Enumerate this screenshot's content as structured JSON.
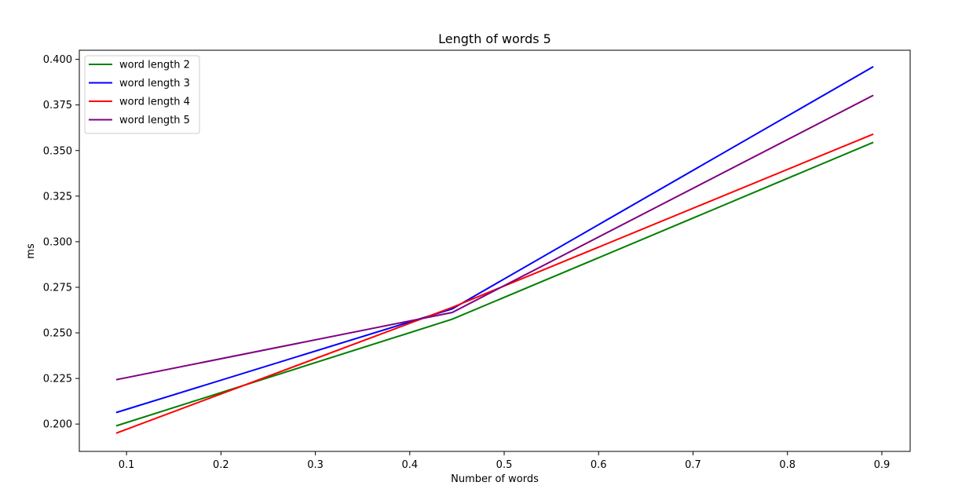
{
  "chart_data": {
    "type": "line",
    "title": "Length of words 5",
    "xlabel": "Number of words",
    "ylabel": "ms",
    "xlim": [
      0.05,
      0.93
    ],
    "ylim": [
      0.185,
      0.405
    ],
    "xticks": [
      0.1,
      0.2,
      0.3,
      0.4,
      0.5,
      0.6,
      0.7,
      0.8,
      0.9
    ],
    "xtick_labels": [
      "0.1",
      "0.2",
      "0.3",
      "0.4",
      "0.5",
      "0.6",
      "0.7",
      "0.8",
      "0.9"
    ],
    "yticks": [
      0.2,
      0.225,
      0.25,
      0.275,
      0.3,
      0.325,
      0.35,
      0.375,
      0.4
    ],
    "ytick_labels": [
      "0.200",
      "0.225",
      "0.250",
      "0.275",
      "0.300",
      "0.325",
      "0.350",
      "0.375",
      "0.400"
    ],
    "grid": false,
    "legend_position": "top-left",
    "x": [
      0.089,
      0.445,
      0.891
    ],
    "series": [
      {
        "name": "word length 2",
        "color": "#008000",
        "values": [
          0.199,
          0.2575,
          0.3545
        ]
      },
      {
        "name": "word length 3",
        "color": "#0000ff",
        "values": [
          0.2063,
          0.2632,
          0.396
        ]
      },
      {
        "name": "word length 4",
        "color": "#ff0000",
        "values": [
          0.195,
          0.264,
          0.359
        ]
      },
      {
        "name": "word length 5",
        "color": "#800080",
        "values": [
          0.2243,
          0.2612,
          0.3803
        ]
      }
    ]
  }
}
